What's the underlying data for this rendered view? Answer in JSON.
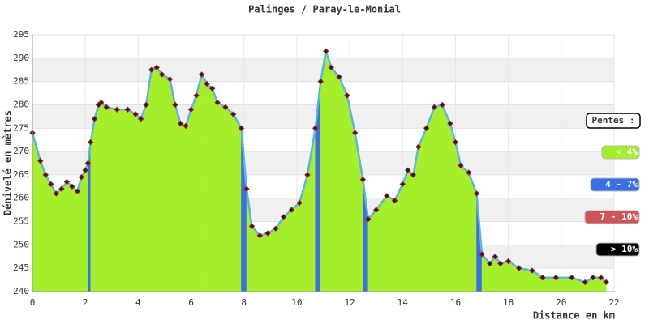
{
  "chart_data": {
    "type": "elevation-profile",
    "title": "Palinges / Paray-le-Monial",
    "x_label": "Distance en km",
    "y_label": "Dénivelé en mètres",
    "xlim": [
      0,
      22
    ],
    "xticks": [
      0,
      2,
      4,
      6,
      8,
      10,
      12,
      14,
      16,
      18,
      20,
      22
    ],
    "ylim": [
      240,
      295
    ],
    "yticks": [
      240,
      245,
      250,
      255,
      260,
      265,
      270,
      275,
      280,
      285,
      290,
      295
    ],
    "grid": true,
    "line_color": "#5ab4e6",
    "marker_color": "#b01818",
    "legend": {
      "title": "Pentes :",
      "position": "right",
      "items": [
        {
          "label": "< 4%",
          "color": "#a5ef2a",
          "max": 4
        },
        {
          "label": "4 - 7%",
          "color": "#3c6ee6",
          "max": 7
        },
        {
          "label": "7 - 10%",
          "color": "#cd5555",
          "max": 10
        },
        {
          "label": "> 10%",
          "color": "#000000",
          "max": null
        }
      ]
    },
    "x": [
      0,
      0.3,
      0.5,
      0.7,
      0.9,
      1.1,
      1.3,
      1.5,
      1.7,
      1.85,
      2.0,
      2.1,
      2.2,
      2.35,
      2.5,
      2.6,
      2.8,
      3.2,
      3.6,
      3.9,
      4.1,
      4.3,
      4.5,
      4.7,
      4.9,
      5.2,
      5.4,
      5.6,
      5.8,
      6.0,
      6.2,
      6.4,
      6.6,
      6.8,
      7.0,
      7.3,
      7.6,
      7.9,
      8.1,
      8.3,
      8.6,
      8.9,
      9.2,
      9.5,
      9.8,
      10.1,
      10.4,
      10.7,
      10.9,
      11.1,
      11.3,
      11.6,
      11.9,
      12.2,
      12.5,
      12.7,
      13.0,
      13.4,
      13.7,
      14.0,
      14.2,
      14.4,
      14.6,
      14.9,
      15.2,
      15.5,
      15.8,
      16.0,
      16.2,
      16.5,
      16.8,
      17.0,
      17.3,
      17.5,
      17.7,
      18.0,
      18.4,
      18.9,
      19.3,
      19.8,
      20.4,
      20.9,
      21.2,
      21.5,
      21.7
    ],
    "values": [
      274,
      268,
      265,
      263,
      261,
      262,
      263.5,
      262.5,
      261.5,
      264.5,
      266,
      267.5,
      272,
      277,
      280,
      280.5,
      279.5,
      279,
      279,
      278,
      277,
      280,
      287.5,
      288,
      286.5,
      285.5,
      280,
      276,
      275.5,
      279,
      282,
      286.5,
      284.5,
      283.5,
      280.5,
      279.5,
      278,
      275,
      262,
      254,
      252,
      252.5,
      253.5,
      256,
      257.5,
      259,
      265,
      275,
      285,
      291.5,
      288,
      286,
      282,
      274,
      264,
      255.5,
      257.5,
      260.5,
      259.5,
      263,
      266,
      265,
      271,
      275,
      279.5,
      280,
      276,
      272,
      267,
      265.5,
      261,
      248,
      246,
      247.5,
      246,
      246.5,
      245,
      244.5,
      243,
      243,
      243,
      242,
      243,
      243,
      242
    ]
  }
}
